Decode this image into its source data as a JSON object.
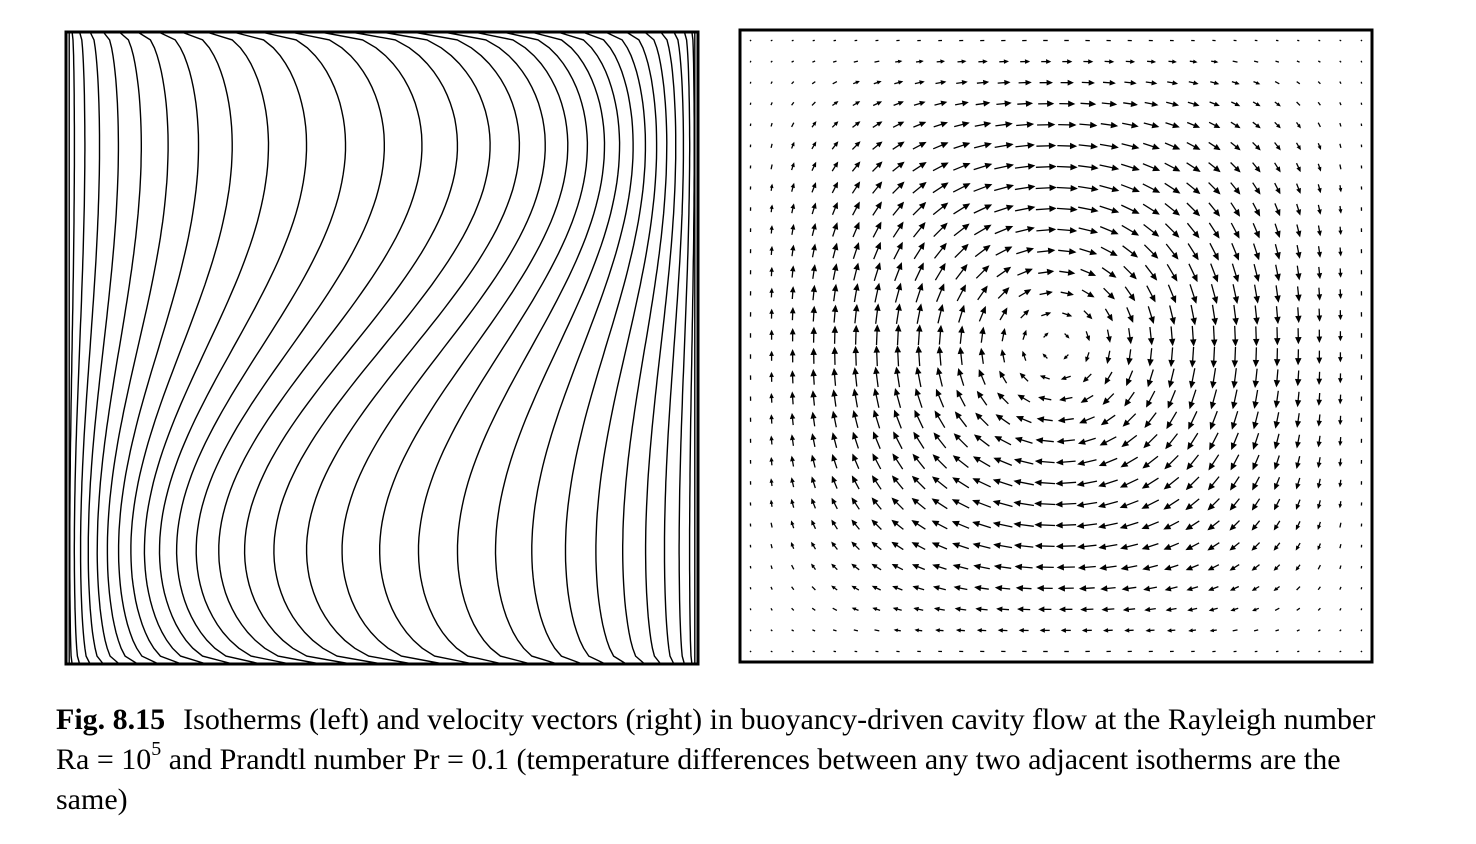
{
  "figure": {
    "panels": [
      {
        "id": "isotherms",
        "content": "isotherm contour lines"
      },
      {
        "id": "velocity",
        "content": "velocity vector field"
      }
    ]
  },
  "caption": {
    "label": "Fig. 8.15",
    "text_1": "Isotherms (left) and velocity vectors (right) in buoyancy-driven cavity flow at the Rayleigh number Ra = 10",
    "exponent": "5",
    "text_2": " and Prandtl number Pr = 0.1 (temperature differences between any two adjacent isotherms are the same)"
  }
}
